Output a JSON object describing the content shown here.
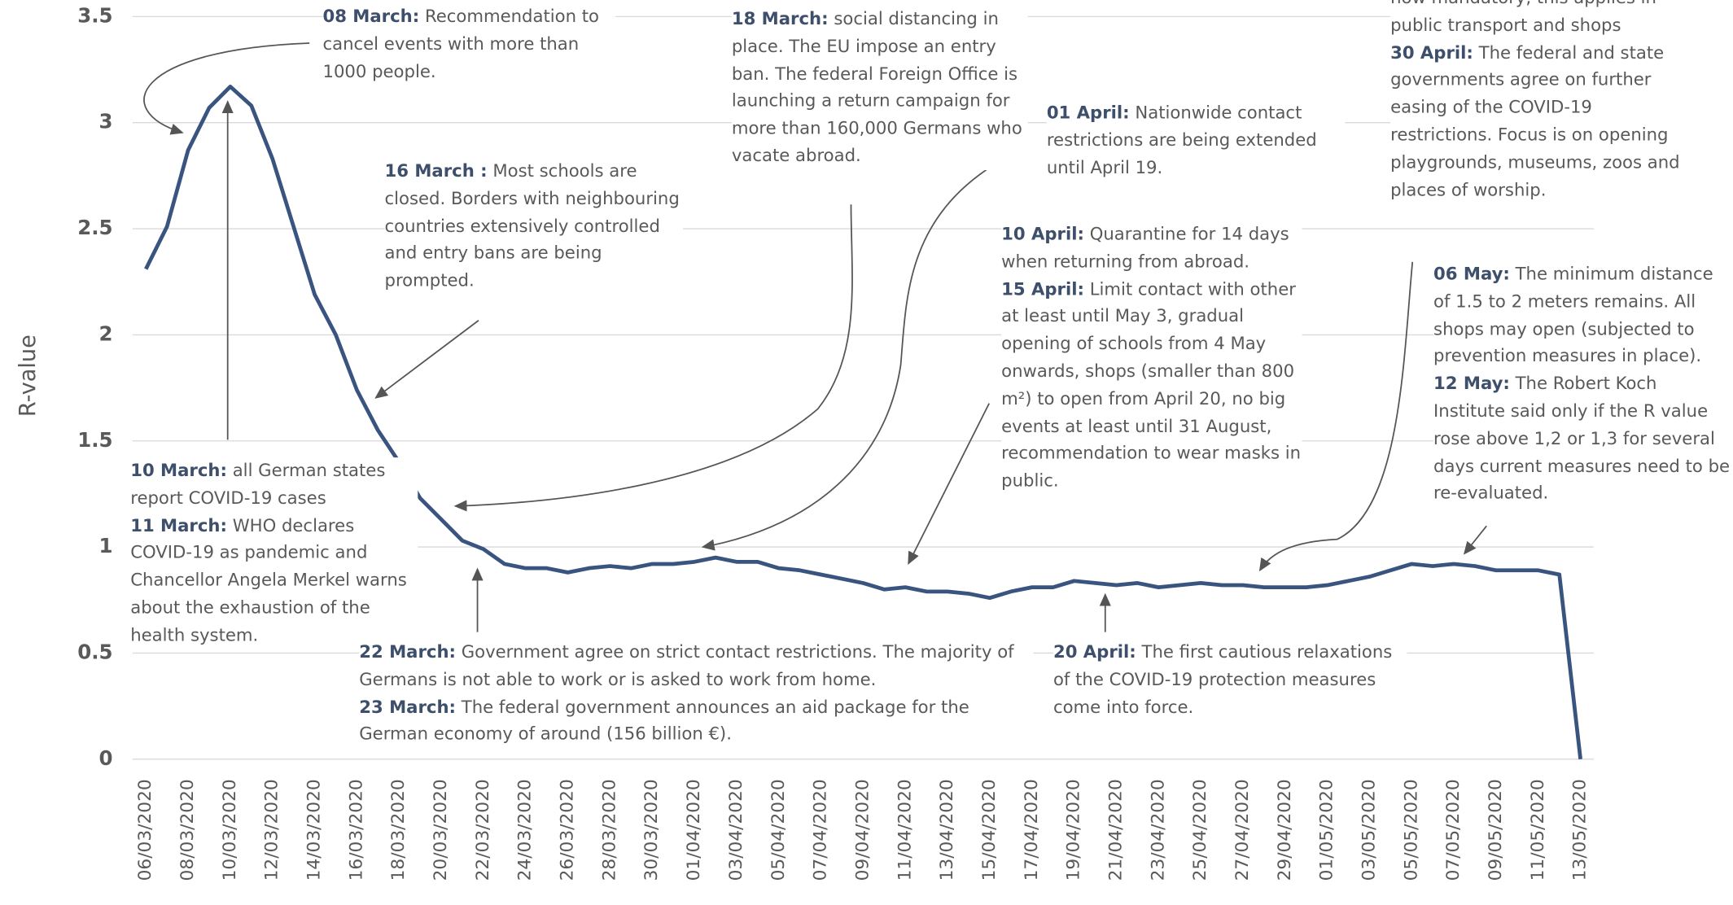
{
  "chart_data": {
    "type": "line",
    "y_label": "R-value",
    "categories": [
      "06/03/2020",
      null,
      "08/03/2020",
      null,
      "10/03/2020",
      null,
      "12/03/2020",
      null,
      "14/03/2020",
      null,
      "16/03/2020",
      null,
      "18/03/2020",
      null,
      "20/03/2020",
      null,
      "22/03/2020",
      null,
      "24/03/2020",
      null,
      "26/03/2020",
      null,
      "28/03/2020",
      null,
      "30/03/2020",
      null,
      "01/04/2020",
      null,
      "03/04/2020",
      null,
      "05/04/2020",
      null,
      "07/04/2020",
      null,
      "09/04/2020",
      null,
      "11/04/2020",
      null,
      "13/04/2020",
      null,
      "15/04/2020",
      null,
      "17/04/2020",
      null,
      "19/04/2020",
      null,
      "21/04/2020",
      null,
      "23/04/2020",
      null,
      "25/04/2020",
      null,
      "27/04/2020",
      null,
      "29/04/2020",
      null,
      "01/05/2020",
      null,
      "03/05/2020",
      null,
      "05/05/2020",
      null,
      "07/05/2020",
      null,
      "09/05/2020",
      null,
      "11/05/2020",
      null,
      "13/05/2020"
    ],
    "series": [
      {
        "name": "R-value",
        "color": "#3a5480",
        "values": [
          2.31,
          2.51,
          2.87,
          3.07,
          3.17,
          3.08,
          2.83,
          2.51,
          2.19,
          2.0,
          1.74,
          1.55,
          1.4,
          1.23,
          1.13,
          1.03,
          0.99,
          0.92,
          0.9,
          0.9,
          0.88,
          0.9,
          0.91,
          0.9,
          0.92,
          0.92,
          0.93,
          0.95,
          0.93,
          0.93,
          0.9,
          0.89,
          0.87,
          0.85,
          0.83,
          0.8,
          0.81,
          0.79,
          0.79,
          0.78,
          0.76,
          0.79,
          0.81,
          0.81,
          0.84,
          0.83,
          0.82,
          0.83,
          0.81,
          0.82,
          0.83,
          0.82,
          0.82,
          0.81,
          0.81,
          0.81,
          0.82,
          0.84,
          0.86,
          0.89,
          0.92,
          0.91,
          0.92,
          0.91,
          0.89,
          0.89,
          0.89,
          0.87,
          0.0
        ]
      }
    ],
    "ylim": [
      0,
      3.5
    ],
    "yticks": [
      0,
      0.5,
      1,
      1.5,
      2,
      2.5,
      3,
      3.5
    ],
    "grid": true,
    "annotations": [
      {
        "entries": [
          {
            "date": "08 March:",
            "text": "Recommendation to cancel events with more than 1000 people."
          }
        ]
      },
      {
        "entries": [
          {
            "date": "10 March:",
            "text": "all German states report COVID-19 cases"
          },
          {
            "date": "11 March:",
            "text": "WHO declares COVID-19 as pandemic and Chancellor Angela Merkel warns about the exhaustion of the health system."
          }
        ]
      },
      {
        "entries": [
          {
            "date": "16 March :",
            "text": "Most schools are closed. Borders with neighbouring countries extensively controlled and entry bans are being prompted."
          }
        ]
      },
      {
        "entries": [
          {
            "date": "18 March:",
            "text": "social distancing in place. The EU impose an entry ban. The federal Foreign Office is launching a return campaign for more than 160,000 Germans who vacate abroad."
          }
        ]
      },
      {
        "entries": [
          {
            "date": "22 March:",
            "text": "Government agree on strict contact restrictions. The majority of Germans is not able to work or is asked to work from home."
          },
          {
            "date": "23 March:",
            "text": "The federal government announces an aid package for the German economy of around (156 billion €)."
          }
        ]
      },
      {
        "entries": [
          {
            "date": "01 April:",
            "text": "Nationwide contact restrictions are being extended until April 19."
          }
        ]
      },
      {
        "entries": [
          {
            "date": "10 April:",
            "text": "Quarantine for 14 days when returning from abroad."
          },
          {
            "date": "15 April:",
            "text": "Limit contact with other at least until May 3, gradual opening of schools from 4 May onwards, shops (smaller than 800 m²) to open from April 20, no big events at least until 31 August, recommendation to wear masks in public."
          }
        ]
      },
      {
        "entries": [
          {
            "date": "20 April:",
            "text": "The first cautious relaxations of the COVID-19 protection measures come into force."
          }
        ]
      },
      {
        "entries": [
          {
            "text": "now mandatory, this applies in public transport and shops"
          },
          {
            "date": "30 April:",
            "text": "The federal and state governments agree on further easing of the COVID-19 restrictions. Focus is on opening playgrounds, museums, zoos and places of worship."
          }
        ]
      },
      {
        "entries": [
          {
            "date": "06 May:",
            "text": "The minimum distance of 1.5 to 2 meters remains. All shops may open (subjected to prevention measures in place)."
          },
          {
            "date": "12 May:",
            "text": "The Robert Koch Institute said only if the R value rose above 1,2 or 1,3 for several days current measures need to be re-evaluated."
          }
        ]
      }
    ]
  }
}
